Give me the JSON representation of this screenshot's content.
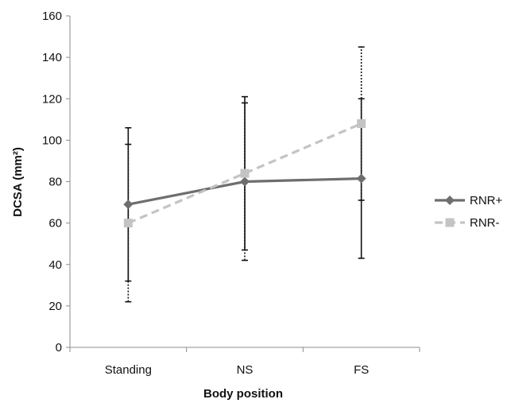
{
  "chart_data": {
    "type": "line",
    "categories": [
      "Standing",
      "NS",
      "FS"
    ],
    "xlabel": "Body position",
    "ylabel": "DCSA (mm²)",
    "ylim": [
      0,
      160
    ],
    "yticks": [
      0,
      20,
      40,
      60,
      80,
      100,
      120,
      140,
      160
    ],
    "grid": false,
    "legend_position": "right",
    "series": [
      {
        "name": "RNR+",
        "values": [
          69,
          80,
          81.5
        ],
        "error_low": [
          32,
          47,
          43
        ],
        "error_high": [
          106,
          121,
          120
        ],
        "color": "#6e6e6e",
        "dash": "solid",
        "marker": "diamond"
      },
      {
        "name": "RNR-",
        "values": [
          60,
          84,
          108
        ],
        "error_low": [
          22,
          42,
          71
        ],
        "error_high": [
          98,
          118,
          145
        ],
        "color": "#c4c4c4",
        "dash": "dashed",
        "marker": "square"
      }
    ]
  }
}
